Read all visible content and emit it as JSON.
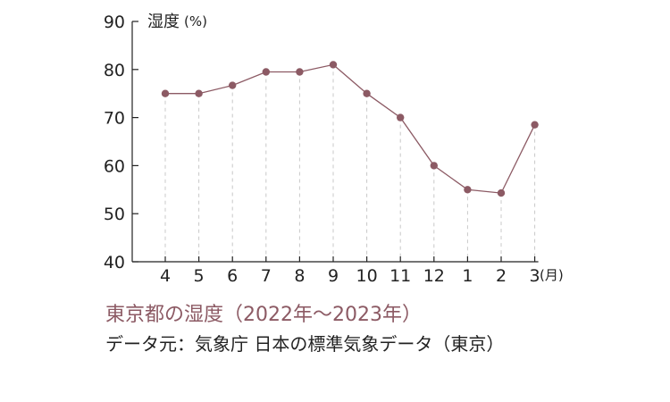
{
  "chart_data": {
    "type": "line",
    "title": "東京都の湿度（2022年〜2023年）",
    "source": "データ元：気象庁 日本の標準気象データ（東京）",
    "ylabel": "湿度",
    "yunit": "(%)",
    "xunit": "(月)",
    "ylim": [
      40,
      90
    ],
    "yticks": [
      40,
      50,
      60,
      70,
      80,
      90
    ],
    "categories": [
      "4",
      "5",
      "6",
      "7",
      "8",
      "9",
      "10",
      "11",
      "12",
      "1",
      "2",
      "3"
    ],
    "values": [
      75,
      75,
      76.7,
      79.5,
      79.5,
      81,
      75,
      70,
      60,
      55,
      54.3,
      68.5
    ],
    "grid": "vertical dashed",
    "colors": {
      "line": "#8c5a64",
      "marker": "#8c5a64",
      "grid": "#c8c8c8",
      "axis": "#222222"
    }
  }
}
